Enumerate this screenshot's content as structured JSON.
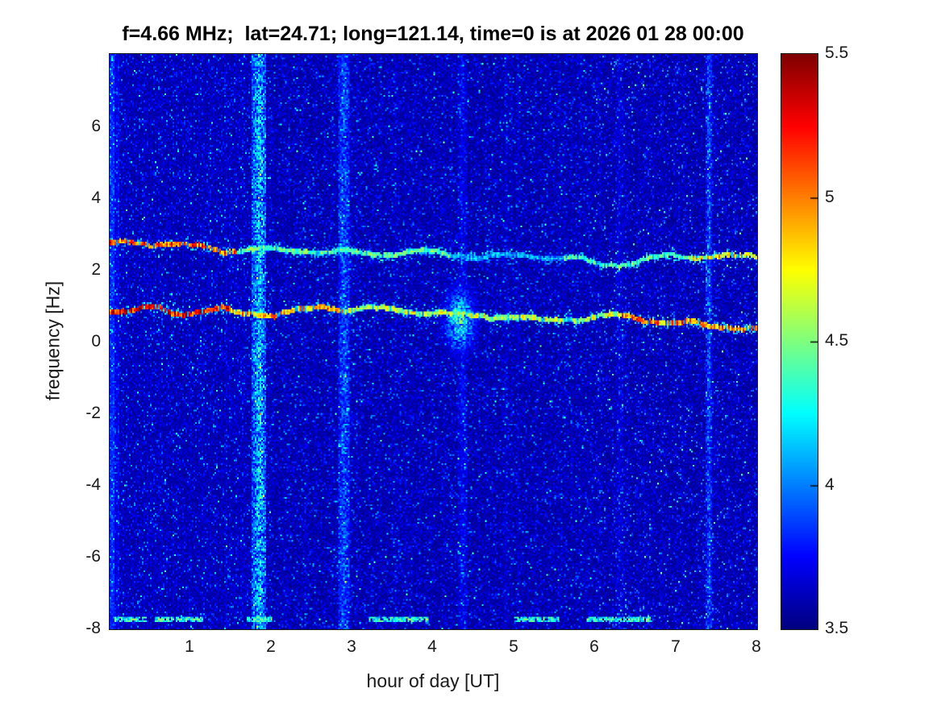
{
  "chart_data": {
    "type": "heatmap",
    "subtype": "spectrogram",
    "title": "f=4.66 MHz;  lat=24.71; long=121.14, time=0 is at 2026 01 28 00:00",
    "xlabel": "hour of day [UT]",
    "ylabel": "frequency [Hz]",
    "x_range": [
      0,
      8
    ],
    "y_range": [
      -8,
      8.05
    ],
    "x_ticks": [
      "1",
      "2",
      "3",
      "4",
      "5",
      "6",
      "7",
      "8"
    ],
    "x_tick_values": [
      1,
      2,
      3,
      4,
      5,
      6,
      7,
      8
    ],
    "y_ticks": [
      "6",
      "4",
      "2",
      "0",
      "-2",
      "-4",
      "-6",
      "-8"
    ],
    "y_tick_values": [
      6,
      4,
      2,
      0,
      -2,
      -4,
      -6,
      -8
    ],
    "grid": false,
    "colormap": "jet",
    "colorbar": {
      "min": 3.5,
      "max": 5.5,
      "ticks": [
        "5.5",
        "5",
        "4.5",
        "4",
        "3.5"
      ],
      "tick_values": [
        5.5,
        5,
        4.5,
        4,
        3.5
      ],
      "position": "right"
    },
    "background_level": 3.55,
    "noise_max": 4.3,
    "features": {
      "horizontal_traces": [
        {
          "name": "upper-doppler-trace",
          "freq_start_hz": 2.65,
          "freq_end_hz": 2.15,
          "width_hz": 0.065,
          "segments": [
            {
              "from_hour": 0.0,
              "to_hour": 1.6,
              "level": 5.05,
              "var": 0.55
            },
            {
              "from_hour": 1.6,
              "to_hour": 4.2,
              "level": 4.4,
              "var": 0.35
            },
            {
              "from_hour": 4.2,
              "to_hour": 5.6,
              "level": 4.05,
              "var": 0.3
            },
            {
              "from_hour": 5.6,
              "to_hour": 7.2,
              "level": 4.4,
              "var": 0.35
            },
            {
              "from_hour": 7.2,
              "to_hour": 8.0,
              "level": 4.75,
              "var": 0.55
            }
          ]
        },
        {
          "name": "lower-doppler-trace",
          "freq_start_hz": 0.9,
          "freq_end_hz": 0.38,
          "width_hz": 0.07,
          "segments": [
            {
              "from_hour": 0.0,
              "to_hour": 1.5,
              "level": 5.25,
              "var": 0.5
            },
            {
              "from_hour": 1.5,
              "to_hour": 3.0,
              "level": 4.9,
              "var": 0.55
            },
            {
              "from_hour": 3.0,
              "to_hour": 6.3,
              "level": 4.6,
              "var": 0.45
            },
            {
              "from_hour": 6.3,
              "to_hour": 8.0,
              "level": 5.0,
              "var": 0.6
            }
          ]
        }
      ],
      "vertical_stripes": [
        {
          "hour": 1.85,
          "width_hours": 0.09,
          "strength": 0.55
        },
        {
          "hour": 2.9,
          "width_hours": 0.07,
          "strength": 0.33
        },
        {
          "hour": 4.35,
          "width_hours": 0.06,
          "strength": 0.13
        },
        {
          "hour": 6.3,
          "width_hours": 0.05,
          "strength": 0.08
        },
        {
          "hour": 7.4,
          "width_hours": 0.035,
          "strength": 0.3
        }
      ],
      "bottom_line": {
        "freq_hz": -7.72,
        "level": 4.35,
        "segments_hours": [
          [
            0.05,
            0.45
          ],
          [
            0.55,
            1.15
          ],
          [
            1.7,
            2.0
          ],
          [
            3.2,
            3.95
          ],
          [
            5.0,
            5.55
          ],
          [
            5.9,
            6.7
          ]
        ]
      },
      "blob": {
        "hour": 4.33,
        "freq_hz": 0.62,
        "sigma_hours": 0.13,
        "sigma_hz": 0.6,
        "strength": 0.85
      }
    }
  }
}
